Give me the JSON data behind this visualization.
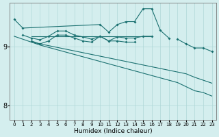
{
  "xlabel": "Humidex (Indice chaleur)",
  "bg_color": "#d4eeee",
  "grid_color": "#b0d8d8",
  "line_color": "#1a7070",
  "xlim": [
    -0.5,
    23.5
  ],
  "ylim": [
    7.75,
    9.75
  ],
  "yticks": [
    8,
    9
  ],
  "xticks": [
    0,
    1,
    2,
    3,
    4,
    5,
    6,
    7,
    8,
    9,
    10,
    11,
    12,
    13,
    14,
    15,
    16,
    17,
    18,
    19,
    20,
    21,
    22,
    23
  ],
  "series": [
    {
      "x": [
        0,
        1,
        2,
        3,
        4,
        5,
        6,
        7,
        8,
        9,
        10,
        11,
        12,
        13,
        14,
        15,
        16,
        17,
        18,
        19,
        20,
        21,
        22,
        23
      ],
      "y": [
        9.47,
        9.32,
        null,
        null,
        null,
        null,
        null,
        null,
        null,
        null,
        9.38,
        9.25,
        9.38,
        9.43,
        9.43,
        9.65,
        9.65,
        9.28,
        9.15,
        null,
        null,
        null,
        null,
        null
      ],
      "marker": true
    },
    {
      "x": [
        1,
        2,
        3,
        4,
        5,
        6,
        7,
        8,
        9,
        10,
        11,
        12,
        13,
        14,
        15,
        16,
        17,
        18,
        19,
        20,
        21,
        22,
        23
      ],
      "y": [
        9.2,
        9.15,
        9.12,
        9.18,
        9.27,
        9.27,
        9.2,
        9.17,
        9.13,
        9.18,
        9.1,
        9.17,
        9.15,
        9.15,
        9.18,
        9.18,
        null,
        null,
        null,
        null,
        null,
        null,
        null
      ],
      "marker": true
    },
    {
      "x": [
        2,
        3,
        4,
        5,
        6,
        7,
        8,
        9,
        10,
        11,
        12,
        13,
        14
      ],
      "y": [
        9.1,
        9.05,
        9.1,
        9.2,
        9.2,
        9.15,
        9.1,
        9.08,
        9.18,
        9.1,
        9.1,
        9.08,
        9.08
      ],
      "marker": true
    },
    {
      "x": [
        2,
        3,
        4,
        5,
        6,
        7,
        8,
        9,
        10,
        11,
        12,
        13,
        14,
        15,
        16
      ],
      "y": [
        9.18,
        9.18,
        9.18,
        9.18,
        9.18,
        9.18,
        9.18,
        9.18,
        9.18,
        9.18,
        9.18,
        9.18,
        9.18,
        9.18,
        9.18
      ],
      "marker": false
    },
    {
      "x": [
        0,
        1,
        2,
        3,
        4,
        5,
        6,
        7,
        8,
        9,
        10,
        11,
        12,
        13,
        14,
        15,
        16,
        17,
        18,
        19,
        20,
        21,
        22,
        23
      ],
      "y": [
        9.18,
        9.13,
        9.08,
        9.03,
        8.99,
        8.95,
        8.91,
        8.87,
        8.83,
        8.79,
        8.75,
        8.71,
        8.67,
        8.63,
        8.59,
        8.55,
        8.51,
        8.47,
        8.43,
        8.39,
        8.32,
        8.25,
        8.22,
        8.16
      ],
      "marker": false
    },
    {
      "x": [
        2,
        3,
        4,
        5,
        6,
        7,
        8,
        9,
        10,
        11,
        12,
        13,
        14,
        15,
        16,
        17,
        18,
        19,
        20,
        21,
        22,
        23
      ],
      "y": [
        9.08,
        9.05,
        9.02,
        8.99,
        8.96,
        8.93,
        8.9,
        8.87,
        8.84,
        8.81,
        8.78,
        8.75,
        8.72,
        8.69,
        8.66,
        8.63,
        8.6,
        8.57,
        8.54,
        8.48,
        8.43,
        8.38
      ],
      "marker": false
    },
    {
      "x": [
        19,
        20,
        21,
        22,
        23
      ],
      "y": [
        9.13,
        9.05,
        8.98,
        8.98,
        8.92
      ],
      "marker": true
    }
  ]
}
